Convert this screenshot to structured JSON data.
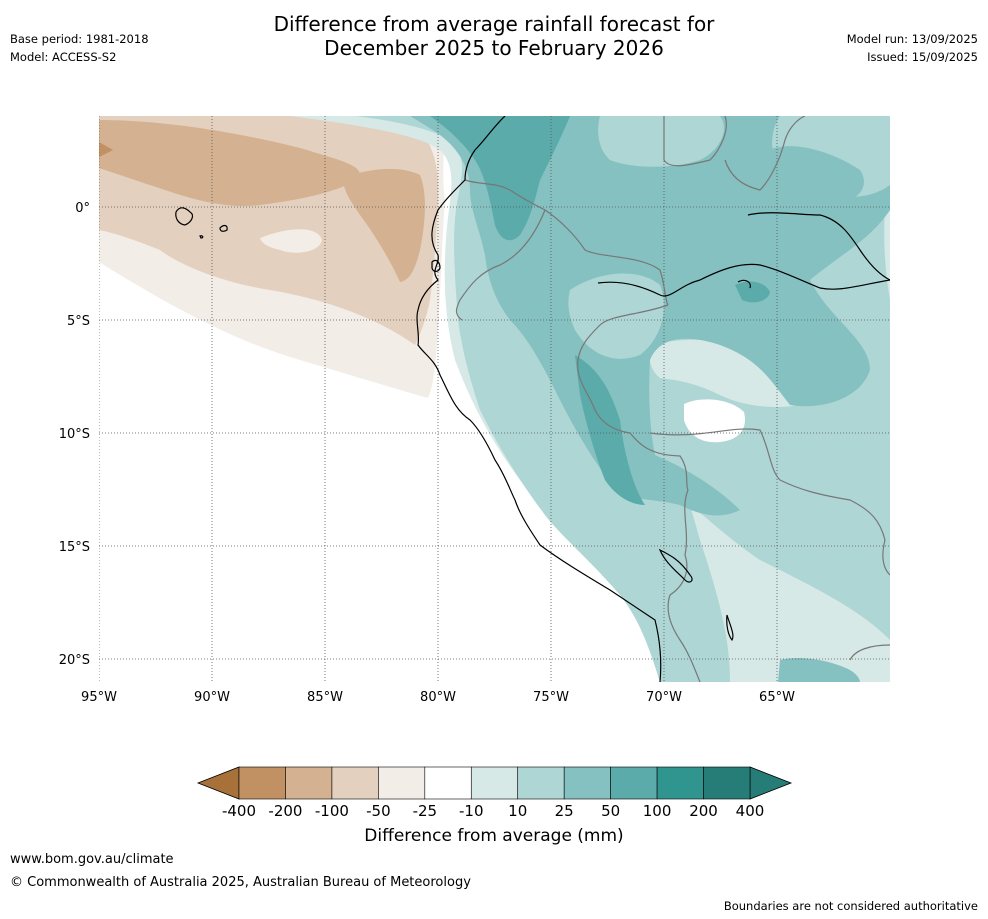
{
  "header": {
    "title_line1": "Difference from average rainfall forecast for",
    "title_line2": "December 2025 to February 2026",
    "base_period": "Base period: 1981-2018",
    "model": "Model: ACCESS-S2",
    "model_run": "Model run: 13/09/2025",
    "issued": "Issued: 15/09/2025"
  },
  "map": {
    "lat_labels": [
      "0°",
      "5°S",
      "10°S",
      "15°S",
      "20°S"
    ],
    "lon_labels": [
      "95°W",
      "90°W",
      "85°W",
      "80°W",
      "75°W",
      "70°W",
      "65°W"
    ],
    "extent": {
      "lon_min": -95,
      "lon_max": -60,
      "lat_min": -21,
      "lat_max": 4
    }
  },
  "legend": {
    "title": "Difference from average (mm)",
    "ticks": [
      "-400",
      "-200",
      "-100",
      "-50",
      "-25",
      "-10",
      "10",
      "25",
      "50",
      "100",
      "200",
      "400"
    ],
    "colors": [
      "#a8713a",
      "#c19163",
      "#d4b190",
      "#e4d0bf",
      "#f2ede7",
      "#ffffff",
      "#d6e9e7",
      "#aed6d5",
      "#85c1c0",
      "#5aabaa",
      "#31958f",
      "#267d78"
    ]
  },
  "footer": {
    "url": "www.bom.gov.au/climate",
    "copyright": "© Commonwealth of Australia 2025, Australian Bureau of Meteorology",
    "note": "Boundaries are not considered authoritative"
  }
}
